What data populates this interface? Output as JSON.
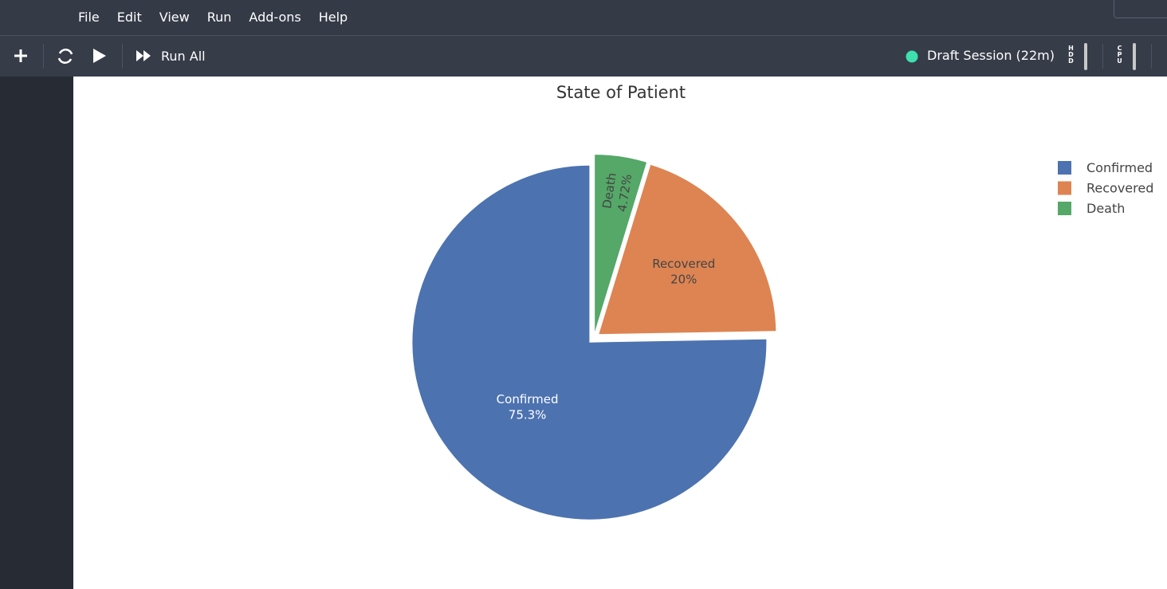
{
  "menu": [
    "File",
    "Edit",
    "View",
    "Run",
    "Add-ons",
    "Help"
  ],
  "toolbar": {
    "run_all": "Run All",
    "session": "Draft Session (22m)",
    "hdd": "HDD",
    "cpu": "CPU"
  },
  "chart_data": {
    "type": "pie",
    "title": "State of Patient",
    "categories": [
      "Confirmed",
      "Recovered",
      "Death"
    ],
    "values": [
      75.3,
      20,
      4.72
    ],
    "value_labels": [
      "75.3%",
      "20%",
      "4.72%"
    ],
    "colors": [
      "#4c72b0",
      "#dd8452",
      "#55a868"
    ],
    "legend": "top-right"
  }
}
